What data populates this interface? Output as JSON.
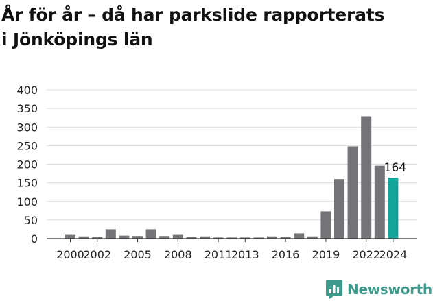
{
  "title_lines": [
    "År för år – då har parkslide rapporterats",
    "i Jönköpings län"
  ],
  "brand": {
    "name": "Newsworthy",
    "color": "#3d9a8a",
    "icon": "bar-chart-icon"
  },
  "chart_data": {
    "type": "bar",
    "categories": [
      "2000",
      "2001",
      "2002",
      "2003",
      "2004",
      "2005",
      "2006",
      "2007",
      "2008",
      "2009",
      "2010",
      "2011",
      "2012",
      "2013",
      "2014",
      "2015",
      "2016",
      "2017",
      "2018",
      "2019",
      "2020",
      "2021",
      "2022",
      "2023",
      "2024"
    ],
    "values": [
      10,
      6,
      4,
      25,
      8,
      7,
      25,
      7,
      10,
      4,
      6,
      3,
      3,
      3,
      3,
      6,
      5,
      14,
      6,
      73,
      160,
      248,
      329,
      196,
      164
    ],
    "xtick_labels": [
      "2000",
      "2002",
      "2005",
      "2008",
      "2011",
      "2013",
      "2016",
      "2019",
      "2022",
      "2024"
    ],
    "yticks": [
      0,
      50,
      100,
      150,
      200,
      250,
      300,
      350,
      400
    ],
    "ylim": [
      0,
      400
    ],
    "highlight_label": "164",
    "bar_color": "#737378",
    "highlight_color": "#14a59a",
    "grid": true
  }
}
